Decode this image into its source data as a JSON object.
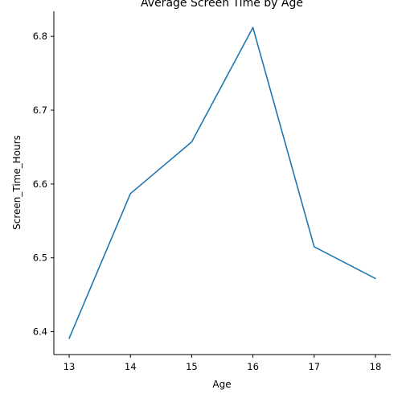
{
  "chart_data": {
    "type": "line",
    "title": "Average Screen Time by Age",
    "xlabel": "Age",
    "ylabel": "Screen_Time_Hours",
    "x": [
      13,
      14,
      15,
      16,
      17,
      18
    ],
    "series": [
      {
        "values": [
          6.391,
          6.587,
          6.657,
          6.812,
          6.515,
          6.472
        ]
      }
    ],
    "xlim": [
      12.75,
      18.25
    ],
    "ylim": [
      6.369,
      6.834
    ],
    "xticks": [
      13,
      14,
      15,
      16,
      17,
      18
    ],
    "yticks": [
      6.4,
      6.5,
      6.6,
      6.7,
      6.8
    ],
    "ytick_labels": [
      "6.4",
      "6.5",
      "6.6",
      "6.7",
      "6.8"
    ],
    "grid": false,
    "colors": {
      "line": "#1f77b4",
      "axis": "#000000"
    }
  }
}
